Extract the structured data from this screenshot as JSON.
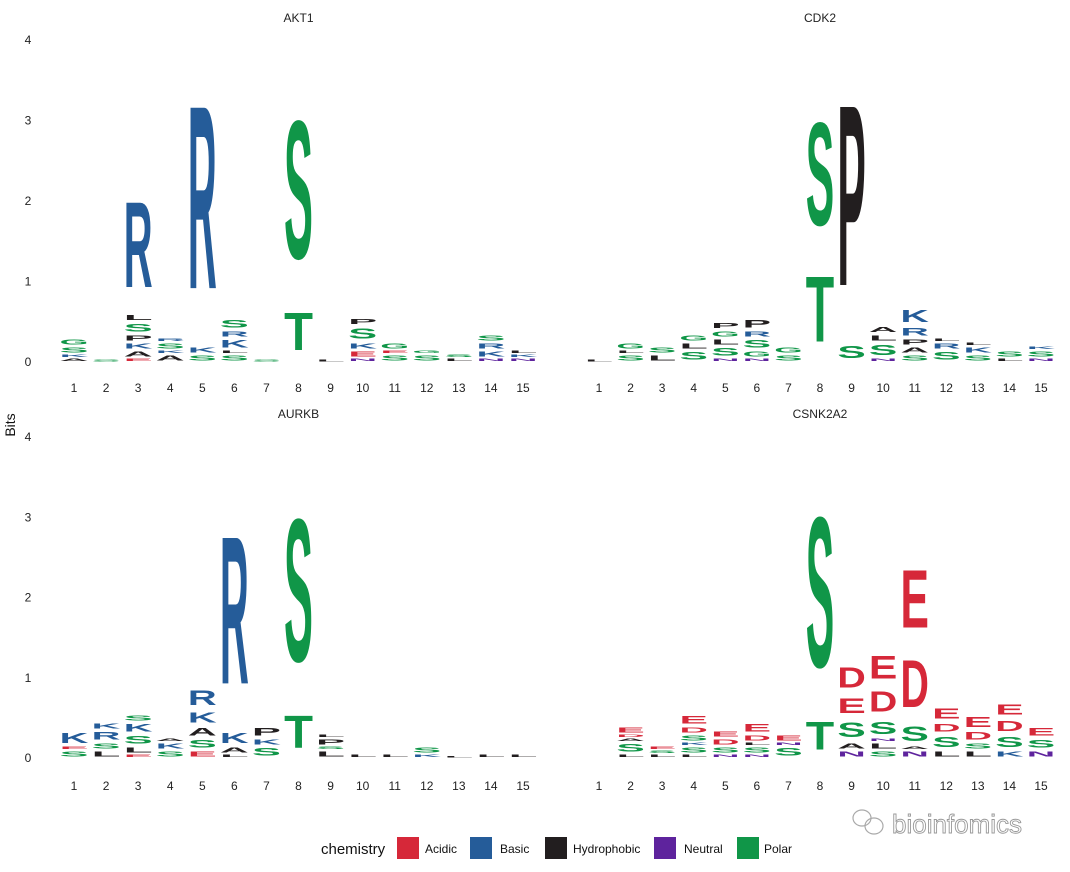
{
  "chart_data": {
    "type": "sequence-logo",
    "ylabel": "Bits",
    "ylim": [
      0,
      4
    ],
    "yticks": [
      "0",
      "1",
      "2",
      "3",
      "4"
    ],
    "positions": [
      "1",
      "2",
      "3",
      "4",
      "5",
      "6",
      "7",
      "8",
      "9",
      "10",
      "11",
      "12",
      "13",
      "14",
      "15"
    ],
    "grid": false,
    "legend": {
      "title": "chemistry",
      "placement": "bottom",
      "entries": [
        {
          "label": "Acidic",
          "color": "#D62839",
          "letters": "DE"
        },
        {
          "label": "Basic",
          "color": "#255C99",
          "letters": "KRH"
        },
        {
          "label": "Hydrophobic",
          "color": "#221E1F",
          "letters": "AVLIPWFM"
        },
        {
          "label": "Neutral",
          "color": "#5E239D",
          "letters": "QN"
        },
        {
          "label": "Polar",
          "color": "#109648",
          "letters": "GSTYC"
        }
      ]
    },
    "panels": [
      {
        "title": "AKT1",
        "stacks": [
          [
            [
              "A",
              0.05
            ],
            [
              "K",
              0.05
            ],
            [
              "S",
              0.1
            ],
            [
              "G",
              0.1
            ]
          ],
          [
            [
              "S",
              0.04
            ]
          ],
          [
            [
              "E",
              0.05
            ],
            [
              "A",
              0.1
            ],
            [
              "K",
              0.1
            ],
            [
              "P",
              0.1
            ],
            [
              "S",
              0.15
            ],
            [
              "L",
              0.1
            ],
            [
              "R",
              1.7
            ]
          ],
          [
            [
              "A",
              0.1
            ],
            [
              "K",
              0.05
            ],
            [
              "S",
              0.1
            ],
            [
              "R",
              0.05
            ]
          ],
          [
            [
              "S",
              0.1
            ],
            [
              "K",
              0.1
            ],
            [
              "R",
              3.65
            ]
          ],
          [
            [
              "S",
              0.1
            ],
            [
              "L",
              0.05
            ],
            [
              "K",
              0.15
            ],
            [
              "R",
              0.1
            ],
            [
              "S",
              0.15
            ]
          ],
          [
            [
              "S",
              0.04
            ]
          ],
          [
            [
              "T",
              0.75
            ],
            [
              "S",
              2.75
            ]
          ],
          [
            [
              "L",
              0.04
            ]
          ],
          [
            [
              "N",
              0.05
            ],
            [
              "E",
              0.1
            ],
            [
              "K",
              0.1
            ],
            [
              "S",
              0.2
            ],
            [
              "P",
              0.1
            ]
          ],
          [
            [
              "S",
              0.1
            ],
            [
              "E",
              0.05
            ],
            [
              "G",
              0.1
            ]
          ],
          [
            [
              "S",
              0.1
            ],
            [
              "G",
              0.05
            ]
          ],
          [
            [
              "L",
              0.05
            ],
            [
              "S",
              0.05
            ]
          ],
          [
            [
              "N",
              0.05
            ],
            [
              "K",
              0.1
            ],
            [
              "R",
              0.1
            ],
            [
              "S",
              0.1
            ]
          ],
          [
            [
              "N",
              0.05
            ],
            [
              "K",
              0.05
            ],
            [
              "L",
              0.05
            ]
          ]
        ]
      },
      {
        "title": "CDK2",
        "stacks": [
          [
            [
              "L",
              0.04
            ]
          ],
          [
            [
              "S",
              0.1
            ],
            [
              "L",
              0.05
            ],
            [
              "G",
              0.1
            ]
          ],
          [
            [
              "L",
              0.1
            ],
            [
              "S",
              0.1
            ]
          ],
          [
            [
              "S",
              0.15
            ],
            [
              "L",
              0.1
            ],
            [
              "G",
              0.1
            ]
          ],
          [
            [
              "N",
              0.05
            ],
            [
              "S",
              0.15
            ],
            [
              "L",
              0.1
            ],
            [
              "G",
              0.1
            ],
            [
              "P",
              0.1
            ]
          ],
          [
            [
              "N",
              0.05
            ],
            [
              "G",
              0.1
            ],
            [
              "S",
              0.15
            ],
            [
              "R",
              0.1
            ],
            [
              "P",
              0.15
            ]
          ],
          [
            [
              "S",
              0.1
            ],
            [
              "G",
              0.1
            ]
          ],
          [
            [
              "T",
              1.3
            ],
            [
              "S",
              2.05
            ]
          ],
          [
            [
              "S",
              0.25
            ],
            [
              "P",
              3.6
            ]
          ],
          [
            [
              "N",
              0.05
            ],
            [
              "S",
              0.2
            ],
            [
              "L",
              0.1
            ],
            [
              "A",
              0.1
            ]
          ],
          [
            [
              "S",
              0.1
            ],
            [
              "A",
              0.1
            ],
            [
              "P",
              0.1
            ],
            [
              "R",
              0.15
            ],
            [
              "K",
              0.25
            ]
          ],
          [
            [
              "S",
              0.15
            ],
            [
              "R",
              0.1
            ],
            [
              "L",
              0.05
            ]
          ],
          [
            [
              "S",
              0.1
            ],
            [
              "K",
              0.1
            ],
            [
              "L",
              0.05
            ]
          ],
          [
            [
              "L",
              0.05
            ],
            [
              "S",
              0.1
            ]
          ],
          [
            [
              "N",
              0.05
            ],
            [
              "S",
              0.1
            ],
            [
              "K",
              0.05
            ]
          ]
        ]
      },
      {
        "title": "AURKB",
        "stacks": [
          [
            [
              "S",
              0.1
            ],
            [
              "E",
              0.05
            ],
            [
              "K",
              0.2
            ]
          ],
          [
            [
              "L",
              0.1
            ],
            [
              "S",
              0.1
            ],
            [
              "R",
              0.15
            ],
            [
              "K",
              0.1
            ]
          ],
          [
            [
              "E",
              0.05
            ],
            [
              "L",
              0.1
            ],
            [
              "S",
              0.15
            ],
            [
              "K",
              0.15
            ],
            [
              "S",
              0.1
            ]
          ],
          [
            [
              "S",
              0.1
            ],
            [
              "K",
              0.1
            ],
            [
              "A",
              0.05
            ]
          ],
          [
            [
              "E",
              0.1
            ],
            [
              "S",
              0.15
            ],
            [
              "A",
              0.15
            ],
            [
              "K",
              0.2
            ],
            [
              "R",
              0.3
            ]
          ],
          [
            [
              "L",
              0.05
            ],
            [
              "A",
              0.1
            ],
            [
              "K",
              0.2
            ],
            [
              "R",
              2.95
            ]
          ],
          [
            [
              "S",
              0.15
            ],
            [
              "K",
              0.1
            ],
            [
              "P",
              0.15
            ]
          ],
          [
            [
              "T",
              0.65
            ],
            [
              "S",
              2.85
            ]
          ],
          [
            [
              "L",
              0.1
            ],
            [
              "S",
              0.05
            ],
            [
              "P",
              0.1
            ],
            [
              "L",
              0.05
            ]
          ],
          [
            [
              "L",
              0.05
            ]
          ],
          [
            [
              "L",
              0.05
            ]
          ],
          [
            [
              "K",
              0.05
            ],
            [
              "S",
              0.1
            ]
          ],
          [
            [
              "L",
              0.03
            ]
          ],
          [
            [
              "L",
              0.05
            ]
          ],
          [
            [
              "L",
              0.05
            ]
          ]
        ]
      },
      {
        "title": "CSNK2A2",
        "stacks": [
          [],
          [
            [
              "L",
              0.05
            ],
            [
              "S",
              0.15
            ],
            [
              "A",
              0.05
            ],
            [
              "D",
              0.05
            ],
            [
              "E",
              0.1
            ]
          ],
          [
            [
              "L",
              0.05
            ],
            [
              "S",
              0.05
            ],
            [
              "E",
              0.05
            ]
          ],
          [
            [
              "L",
              0.05
            ],
            [
              "S",
              0.1
            ],
            [
              "K",
              0.05
            ],
            [
              "S",
              0.1
            ],
            [
              "D",
              0.1
            ],
            [
              "E",
              0.15
            ]
          ],
          [
            [
              "N",
              0.05
            ],
            [
              "S",
              0.1
            ],
            [
              "D",
              0.1
            ],
            [
              "E",
              0.1
            ]
          ],
          [
            [
              "N",
              0.05
            ],
            [
              "S",
              0.1
            ],
            [
              "L",
              0.05
            ],
            [
              "D",
              0.1
            ],
            [
              "E",
              0.15
            ]
          ],
          [
            [
              "S",
              0.15
            ],
            [
              "N",
              0.05
            ],
            [
              "E",
              0.1
            ]
          ],
          [
            [
              "T",
              0.55
            ],
            [
              "S",
              3.0
            ]
          ],
          [
            [
              "N",
              0.1
            ],
            [
              "A",
              0.1
            ],
            [
              "S",
              0.3
            ],
            [
              "E",
              0.3
            ],
            [
              "D",
              0.4
            ]
          ],
          [
            [
              "S",
              0.1
            ],
            [
              "L",
              0.1
            ],
            [
              "N",
              0.05
            ],
            [
              "S",
              0.25
            ],
            [
              "D",
              0.4
            ],
            [
              "E",
              0.45
            ]
          ],
          [
            [
              "N",
              0.1
            ],
            [
              "A",
              0.05
            ],
            [
              "S",
              0.3
            ],
            [
              "D",
              0.95
            ],
            [
              "E",
              1.15
            ]
          ],
          [
            [
              "L",
              0.1
            ],
            [
              "S",
              0.2
            ],
            [
              "D",
              0.15
            ],
            [
              "E",
              0.2
            ]
          ],
          [
            [
              "L",
              0.1
            ],
            [
              "S",
              0.1
            ],
            [
              "D",
              0.15
            ],
            [
              "E",
              0.2
            ]
          ],
          [
            [
              "K",
              0.1
            ],
            [
              "S",
              0.2
            ],
            [
              "D",
              0.2
            ],
            [
              "E",
              0.2
            ]
          ],
          [
            [
              "N",
              0.1
            ],
            [
              "S",
              0.15
            ],
            [
              "E",
              0.15
            ]
          ]
        ]
      }
    ]
  },
  "watermark": "bioinfomics"
}
